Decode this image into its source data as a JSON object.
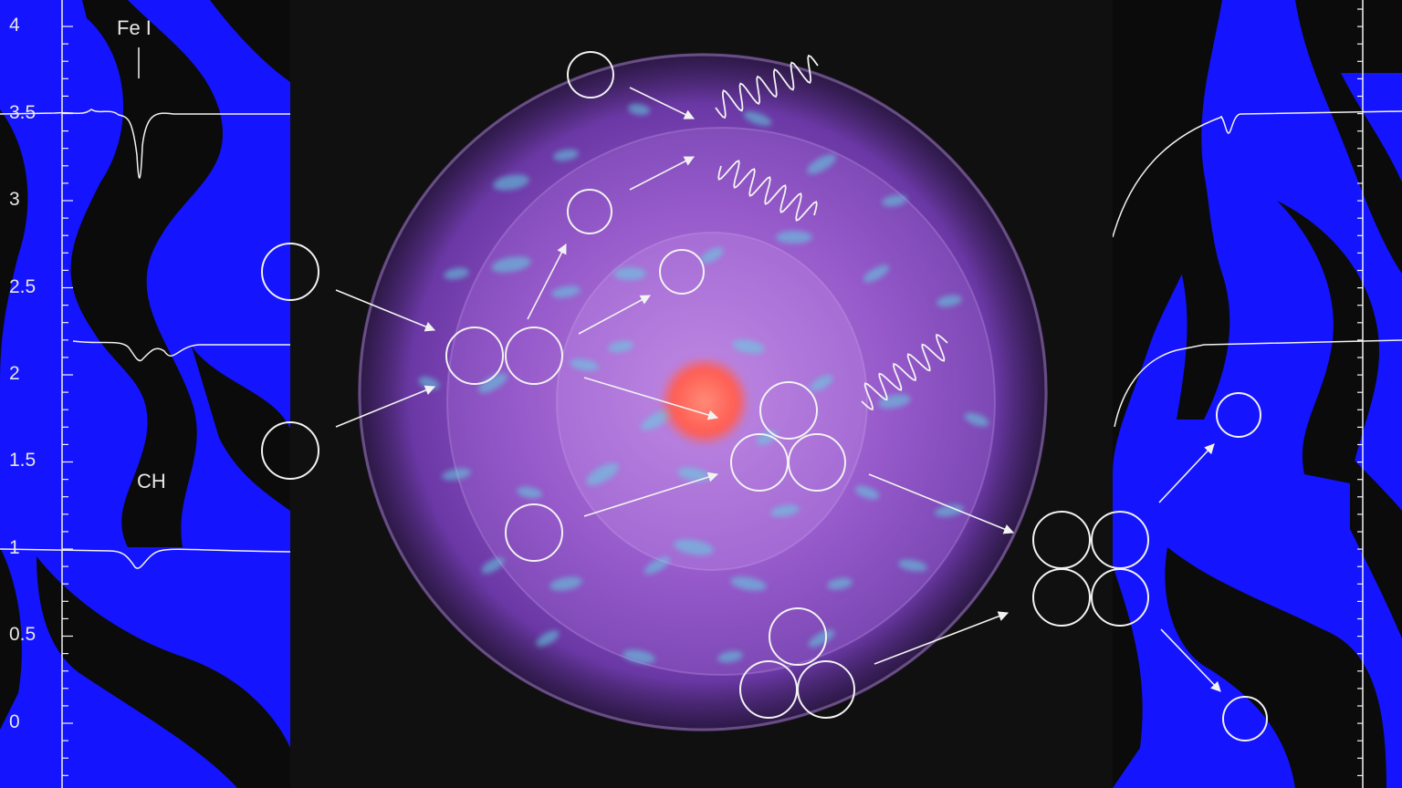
{
  "colors": {
    "background": "#101010",
    "blue_panel": "#1414ff",
    "nebula": "#9a55d6",
    "nebula_spot": "#5fd6e0",
    "core": "#ff6a5a",
    "line": "#f2f2f2"
  },
  "y_axis": {
    "ticks": [
      "4",
      "3.5",
      "3",
      "2.5",
      "2",
      "1.5",
      "1",
      "0.5",
      "0"
    ]
  },
  "line_labels": {
    "iron": "Fe I",
    "carbon_hydride": "CH"
  },
  "icons": [
    "spectrum-line-icon",
    "nucleus-circle-icon",
    "arrow-icon",
    "wave-icon",
    "star-core-icon"
  ]
}
